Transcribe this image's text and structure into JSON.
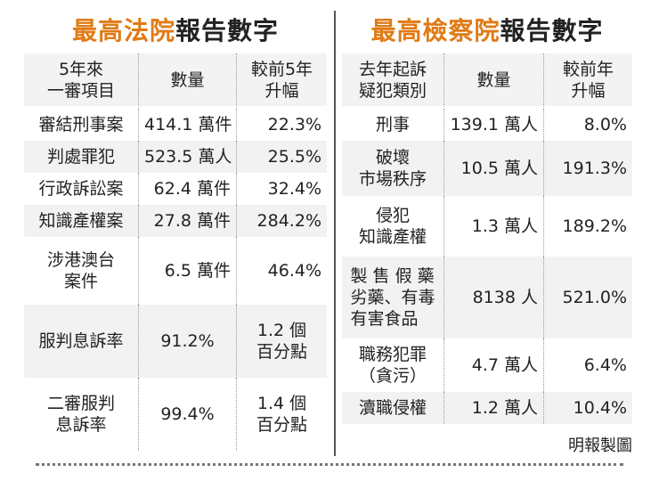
{
  "left": {
    "title_highlight": "最高法院",
    "title_rest": "報告數字",
    "headers": [
      "5年來\n一審項目",
      "數量",
      "較前5年\n升幅"
    ],
    "rows": [
      {
        "item": "審結刑事案",
        "qty": "414.1 萬件",
        "change": "22.3%"
      },
      {
        "item": "判處罪犯",
        "qty": "523.5 萬人",
        "change": "25.5%"
      },
      {
        "item": "行政訴訟案",
        "qty": "62.4 萬件",
        "change": "32.4%"
      },
      {
        "item": "知識產權案",
        "qty": "27.8 萬件",
        "change": "284.2%"
      },
      {
        "item": "涉港澳台\n案件",
        "qty": "6.5 萬件",
        "change": "46.4%"
      },
      {
        "item": "服判息訴率",
        "qty": "91.2%",
        "change": "1.2 個\n百分點"
      },
      {
        "item": "二審服判\n息訴率",
        "qty": "99.4%",
        "change": "1.4 個\n百分點"
      }
    ]
  },
  "right": {
    "title_highlight": "最高檢察院",
    "title_rest": "報告數字",
    "headers": [
      "去年起訴\n疑犯類別",
      "數量",
      "較前年\n升幅"
    ],
    "rows": [
      {
        "item": "刑事",
        "qty": "139.1 萬人",
        "change": "8.0%"
      },
      {
        "item": "破壞\n市場秩序",
        "qty": "10.5 萬人",
        "change": "191.3%"
      },
      {
        "item": "侵犯\n知識產權",
        "qty": "1.3 萬人",
        "change": "189.2%"
      },
      {
        "item": "製 售 假 藥\n劣藥、有毒\n有害食品",
        "qty": "8138 人",
        "change": "521.0%"
      },
      {
        "item": "職務犯罪\n（貪污）",
        "qty": "4.7 萬人",
        "change": "6.4%"
      },
      {
        "item": "瀆職侵權",
        "qty": "1.2 萬人",
        "change": "10.4%"
      }
    ]
  },
  "credit": "明報製圖"
}
